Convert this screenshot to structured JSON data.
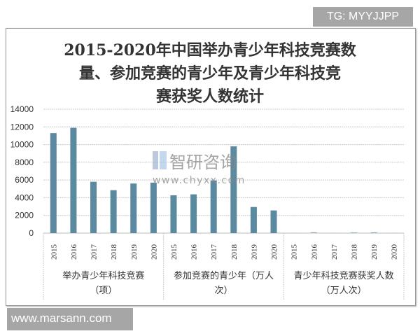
{
  "watermark_top": "TG: MYYJJPP",
  "watermark_bottom": "www.marsann.com",
  "chart_watermark": {
    "brand": "智研咨询",
    "url": "www.chyxx.com"
  },
  "chart_data": {
    "type": "bar",
    "title_lines": [
      "2015-2020年中国举办青少年科技竞赛数",
      "量、参加竞赛的青少年及青少年科技竞",
      "赛获奖人数统计"
    ],
    "ylim": [
      0,
      14000
    ],
    "yticks": [
      0,
      2000,
      4000,
      6000,
      8000,
      10000,
      12000,
      14000
    ],
    "grid": true,
    "bar_color": "#5b8aa0",
    "groups": [
      {
        "label_lines": [
          "举办青少年科技竞赛",
          "（项）"
        ],
        "years": [
          "2015",
          "2016",
          "2017",
          "2018",
          "2019",
          "2020"
        ],
        "values": [
          11300,
          11900,
          5800,
          4850,
          5600,
          5700
        ]
      },
      {
        "label_lines": [
          "参加竞赛的青少年（万人",
          "次）"
        ],
        "years": [
          "2015",
          "2016",
          "2017",
          "2018",
          "2019",
          "2020"
        ],
        "values": [
          4270,
          4380,
          5950,
          9800,
          2950,
          2560
        ]
      },
      {
        "label_lines": [
          "青少年科技竞赛获奖人数",
          "（万人次）"
        ],
        "years": [
          "2015",
          "2016",
          "2017",
          "2018",
          "2019",
          "2020"
        ],
        "values": [
          10,
          60,
          10,
          50,
          60,
          10
        ]
      }
    ]
  }
}
